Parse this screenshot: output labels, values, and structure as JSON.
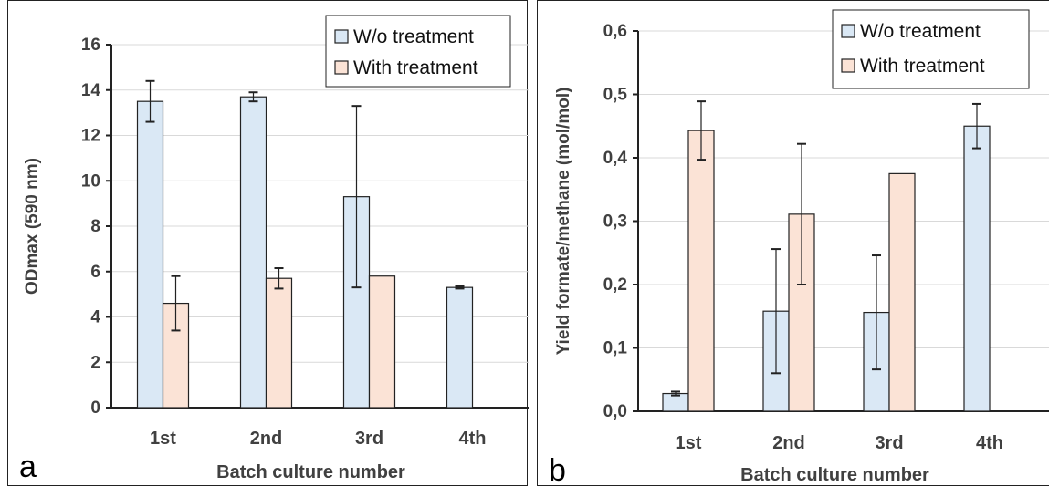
{
  "chart_data": [
    {
      "panel_label": "a",
      "type": "bar",
      "title": "",
      "xlabel": "Batch culture number",
      "ylabel": "ODmax (590 nm)",
      "categories": [
        "1st",
        "2nd",
        "3rd",
        "4th"
      ],
      "ylim": [
        0,
        16
      ],
      "yticks": [
        "0",
        "2",
        "4",
        "6",
        "8",
        "10",
        "12",
        "14",
        "16"
      ],
      "grid": true,
      "legend_position": "top-right",
      "series": [
        {
          "name": "W/o treatment",
          "color": "#dae8f5",
          "values": [
            13.5,
            13.7,
            9.3,
            5.3
          ],
          "error": [
            0.9,
            0.2,
            4.0,
            0.05
          ]
        },
        {
          "name": "With treatment",
          "color": "#fbe3d6",
          "values": [
            4.6,
            5.7,
            5.8,
            null
          ],
          "error": [
            1.2,
            0.45,
            0,
            null
          ]
        }
      ]
    },
    {
      "panel_label": "b",
      "type": "bar",
      "title": "",
      "xlabel": "Batch culture number",
      "ylabel": "Yield formate/methane (mol/mol)",
      "categories": [
        "1st",
        "2nd",
        "3rd",
        "4th"
      ],
      "ylim": [
        0,
        0.6
      ],
      "yticks": [
        "0,0",
        "0,1",
        "0,2",
        "0,3",
        "0,4",
        "0,5",
        "0,6"
      ],
      "grid": true,
      "legend_position": "top-right",
      "series": [
        {
          "name": "W/o treatment",
          "color": "#dae8f5",
          "values": [
            0.028,
            0.158,
            0.156,
            0.45
          ],
          "error": [
            0.003,
            0.098,
            0.09,
            0.035
          ]
        },
        {
          "name": "With treatment",
          "color": "#fbe3d6",
          "values": [
            0.443,
            0.311,
            0.375,
            null
          ],
          "error": [
            0.046,
            0.111,
            0,
            null
          ]
        }
      ]
    }
  ]
}
